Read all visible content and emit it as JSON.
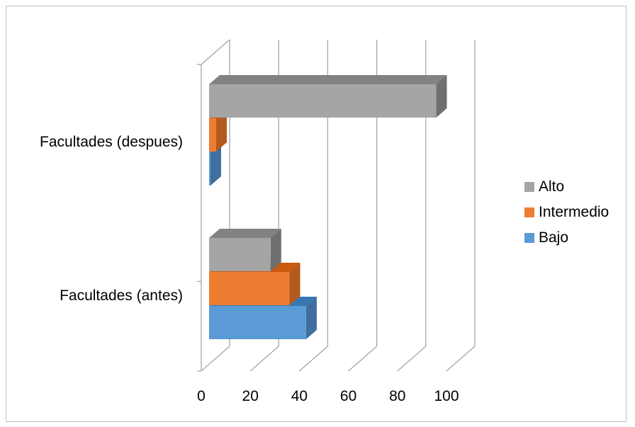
{
  "chart_data": {
    "type": "bar",
    "orientation": "horizontal",
    "style": "3d-clustered",
    "categories": [
      "Facultades (antes)",
      "Facultades (despues)"
    ],
    "series": [
      {
        "name": "Bajo",
        "color": "#5b9bd5",
        "side_color": "#3f6f9e",
        "values": [
          41,
          0.5
        ]
      },
      {
        "name": "Intermedio",
        "color": "#ed7d31",
        "side_color": "#b35a1c",
        "values": [
          34,
          3
        ]
      },
      {
        "name": "Alto",
        "color": "#a5a5a5",
        "side_color": "#6f6f6f",
        "values": [
          26,
          96
        ]
      }
    ],
    "xlim": [
      0,
      100
    ],
    "xticks": [
      "0",
      "20",
      "40",
      "60",
      "80",
      "100"
    ],
    "grid": true,
    "legend": "right"
  }
}
